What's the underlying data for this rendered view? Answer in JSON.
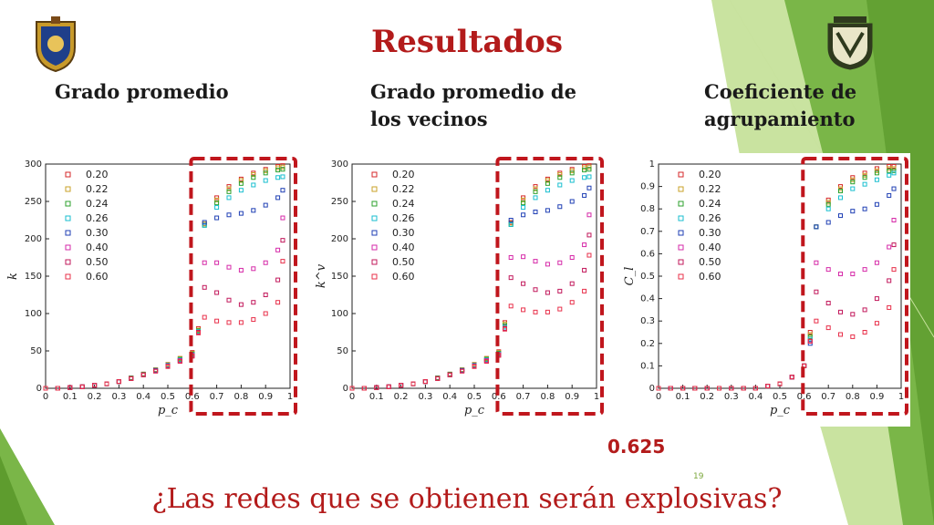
{
  "slide": {
    "title": "Resultados",
    "headings": [
      "Grado promedio",
      "Grado promedio de los vecinos",
      "Coeficiente de agrupamiento"
    ],
    "threshold_label": "0.625",
    "slide_number": "19",
    "question": "¿Las redes que se obtienen serán explosivas?",
    "colors": {
      "title": "#b31b1b",
      "accent_green": "#7ab648",
      "highlight_box": "#c0161d"
    }
  },
  "chart_data": [
    {
      "type": "scatter",
      "title": "",
      "xlabel": "p_c",
      "ylabel": "k̄",
      "xlim": [
        0,
        1
      ],
      "ylim": [
        0,
        300
      ],
      "xticks": [
        "0",
        "0.1",
        "0.2",
        "0.3",
        "0.4",
        "0.5",
        "0.6",
        "0.7",
        "0.8",
        "0.9",
        "1"
      ],
      "yticks": [
        "0",
        "50",
        "100",
        "150",
        "200",
        "250",
        "300"
      ],
      "legend_position": "top-left",
      "x": [
        0,
        0.05,
        0.1,
        0.15,
        0.2,
        0.25,
        0.3,
        0.35,
        0.4,
        0.45,
        0.5,
        0.55,
        0.6,
        0.625,
        0.65,
        0.7,
        0.75,
        0.8,
        0.85,
        0.9,
        0.95,
        0.97
      ],
      "series": [
        {
          "name": "0.20",
          "color": "#d62728",
          "values": [
            0,
            0,
            1,
            2,
            4,
            6,
            9,
            14,
            19,
            25,
            32,
            40,
            48,
            80,
            220,
            255,
            270,
            280,
            288,
            293,
            297,
            298
          ]
        },
        {
          "name": "0.22",
          "color": "#c9a227",
          "values": [
            0,
            0,
            1,
            2,
            4,
            6,
            9,
            14,
            19,
            25,
            32,
            40,
            47,
            78,
            220,
            252,
            267,
            278,
            286,
            291,
            295,
            296
          ]
        },
        {
          "name": "0.24",
          "color": "#2ca02c",
          "values": [
            0,
            0,
            1,
            2,
            4,
            6,
            9,
            14,
            19,
            24,
            31,
            39,
            46,
            77,
            218,
            248,
            263,
            274,
            282,
            288,
            292,
            293
          ]
        },
        {
          "name": "0.26",
          "color": "#17becf",
          "values": [
            0,
            0,
            1,
            2,
            4,
            6,
            9,
            13,
            18,
            24,
            31,
            38,
            45,
            76,
            218,
            242,
            255,
            265,
            272,
            278,
            282,
            283
          ]
        },
        {
          "name": "0.30",
          "color": "#1f3fb4",
          "values": [
            0,
            0,
            1,
            2,
            4,
            6,
            9,
            13,
            18,
            24,
            30,
            37,
            44,
            75,
            222,
            228,
            232,
            234,
            238,
            245,
            255,
            265
          ]
        },
        {
          "name": "0.40",
          "color": "#d62aa8",
          "values": [
            0,
            0,
            1,
            2,
            4,
            6,
            9,
            13,
            18,
            23,
            30,
            37,
            44,
            75,
            168,
            168,
            162,
            158,
            160,
            168,
            185,
            228
          ]
        },
        {
          "name": "0.50",
          "color": "#c2185b",
          "values": [
            0,
            0,
            1,
            2,
            4,
            6,
            9,
            13,
            18,
            23,
            30,
            36,
            43,
            75,
            135,
            128,
            118,
            112,
            115,
            125,
            145,
            198
          ]
        },
        {
          "name": "0.60",
          "color": "#e8304a",
          "values": [
            0,
            0,
            1,
            2,
            4,
            6,
            9,
            13,
            18,
            23,
            29,
            36,
            43,
            74,
            95,
            90,
            88,
            88,
            92,
            100,
            115,
            170
          ]
        }
      ]
    },
    {
      "type": "scatter",
      "title": "",
      "xlabel": "p_c",
      "ylabel": "k̄^v",
      "xlim": [
        0,
        1
      ],
      "ylim": [
        0,
        300
      ],
      "xticks": [
        "0",
        "0.1",
        "0.2",
        "0.3",
        "0.4",
        "0.5",
        "0.6",
        "0.7",
        "0.8",
        "0.9",
        "1"
      ],
      "yticks": [
        "0",
        "50",
        "100",
        "150",
        "200",
        "250",
        "300"
      ],
      "legend_position": "top-left",
      "x": [
        0,
        0.05,
        0.1,
        0.15,
        0.2,
        0.25,
        0.3,
        0.35,
        0.4,
        0.45,
        0.5,
        0.55,
        0.6,
        0.625,
        0.65,
        0.7,
        0.75,
        0.8,
        0.85,
        0.9,
        0.95,
        0.97
      ],
      "series": [
        {
          "name": "0.20",
          "color": "#d62728",
          "values": [
            0,
            0,
            1,
            2,
            4,
            6,
            9,
            14,
            19,
            25,
            32,
            40,
            49,
            88,
            222,
            255,
            270,
            280,
            288,
            293,
            297,
            298
          ]
        },
        {
          "name": "0.22",
          "color": "#c9a227",
          "values": [
            0,
            0,
            1,
            2,
            4,
            6,
            9,
            14,
            19,
            25,
            32,
            40,
            48,
            86,
            221,
            252,
            267,
            278,
            286,
            291,
            295,
            296
          ]
        },
        {
          "name": "0.24",
          "color": "#2ca02c",
          "values": [
            0,
            0,
            1,
            2,
            4,
            6,
            9,
            14,
            19,
            24,
            31,
            39,
            47,
            84,
            219,
            248,
            263,
            274,
            282,
            288,
            292,
            293
          ]
        },
        {
          "name": "0.26",
          "color": "#17becf",
          "values": [
            0,
            0,
            1,
            2,
            4,
            6,
            9,
            13,
            18,
            24,
            31,
            38,
            46,
            82,
            219,
            242,
            255,
            265,
            272,
            278,
            282,
            283
          ]
        },
        {
          "name": "0.30",
          "color": "#1f3fb4",
          "values": [
            0,
            0,
            1,
            2,
            4,
            6,
            9,
            13,
            18,
            24,
            30,
            37,
            45,
            80,
            225,
            232,
            236,
            238,
            243,
            250,
            258,
            268
          ]
        },
        {
          "name": "0.40",
          "color": "#d62aa8",
          "values": [
            0,
            0,
            1,
            2,
            4,
            6,
            9,
            13,
            18,
            23,
            30,
            37,
            45,
            80,
            175,
            176,
            170,
            166,
            168,
            175,
            192,
            232
          ]
        },
        {
          "name": "0.50",
          "color": "#c2185b",
          "values": [
            0,
            0,
            1,
            2,
            4,
            6,
            9,
            13,
            18,
            23,
            30,
            36,
            44,
            80,
            148,
            140,
            132,
            128,
            130,
            140,
            158,
            205
          ]
        },
        {
          "name": "0.60",
          "color": "#e8304a",
          "values": [
            0,
            0,
            1,
            2,
            4,
            6,
            9,
            13,
            18,
            23,
            29,
            36,
            44,
            79,
            110,
            105,
            102,
            102,
            106,
            115,
            130,
            178
          ]
        }
      ]
    },
    {
      "type": "scatter",
      "title": "",
      "xlabel": "p_c",
      "ylabel": "C_l",
      "xlim": [
        0,
        1
      ],
      "ylim": [
        0,
        1
      ],
      "xticks": [
        "0",
        "0.1",
        "0.2",
        "0.3",
        "0.4",
        "0.5",
        "0.6",
        "0.7",
        "0.8",
        "0.9",
        "1"
      ],
      "yticks": [
        "0",
        "0.1",
        "0.2",
        "0.3",
        "0.4",
        "0.5",
        "0.6",
        "0.7",
        "0.8",
        "0.9",
        "1"
      ],
      "legend_position": "top-left",
      "x": [
        0,
        0.05,
        0.1,
        0.15,
        0.2,
        0.25,
        0.3,
        0.35,
        0.4,
        0.45,
        0.5,
        0.55,
        0.6,
        0.625,
        0.65,
        0.7,
        0.75,
        0.8,
        0.85,
        0.9,
        0.95,
        0.97
      ],
      "series": [
        {
          "name": "0.20",
          "color": "#d62728",
          "values": [
            0,
            0,
            0,
            0,
            0,
            0,
            0,
            0,
            0,
            0.01,
            0.02,
            0.05,
            0.1,
            0.25,
            0.72,
            0.84,
            0.9,
            0.94,
            0.96,
            0.98,
            0.99,
            0.99
          ]
        },
        {
          "name": "0.22",
          "color": "#c9a227",
          "values": [
            0,
            0,
            0,
            0,
            0,
            0,
            0,
            0,
            0,
            0.01,
            0.02,
            0.05,
            0.1,
            0.24,
            0.72,
            0.83,
            0.89,
            0.93,
            0.95,
            0.97,
            0.98,
            0.98
          ]
        },
        {
          "name": "0.24",
          "color": "#2ca02c",
          "values": [
            0,
            0,
            0,
            0,
            0,
            0,
            0,
            0,
            0,
            0.01,
            0.02,
            0.05,
            0.1,
            0.23,
            0.72,
            0.82,
            0.88,
            0.92,
            0.94,
            0.96,
            0.97,
            0.97
          ]
        },
        {
          "name": "0.26",
          "color": "#17becf",
          "values": [
            0,
            0,
            0,
            0,
            0,
            0,
            0,
            0,
            0,
            0.01,
            0.02,
            0.05,
            0.1,
            0.22,
            0.72,
            0.8,
            0.85,
            0.89,
            0.91,
            0.93,
            0.95,
            0.96
          ]
        },
        {
          "name": "0.30",
          "color": "#1f3fb4",
          "values": [
            0,
            0,
            0,
            0,
            0,
            0,
            0,
            0,
            0,
            0.01,
            0.02,
            0.05,
            0.1,
            0.2,
            0.72,
            0.74,
            0.77,
            0.79,
            0.8,
            0.82,
            0.86,
            0.89
          ]
        },
        {
          "name": "0.40",
          "color": "#d62aa8",
          "values": [
            0,
            0,
            0,
            0,
            0,
            0,
            0,
            0,
            0,
            0.01,
            0.02,
            0.05,
            0.1,
            0.21,
            0.56,
            0.53,
            0.51,
            0.51,
            0.53,
            0.56,
            0.63,
            0.75
          ]
        },
        {
          "name": "0.50",
          "color": "#c2185b",
          "values": [
            0,
            0,
            0,
            0,
            0,
            0,
            0,
            0,
            0,
            0.01,
            0.02,
            0.05,
            0.1,
            0.21,
            0.43,
            0.38,
            0.34,
            0.33,
            0.35,
            0.4,
            0.48,
            0.64
          ]
        },
        {
          "name": "0.60",
          "color": "#e8304a",
          "values": [
            0,
            0,
            0,
            0,
            0,
            0,
            0,
            0,
            0,
            0.01,
            0.02,
            0.05,
            0.1,
            0.21,
            0.3,
            0.27,
            0.24,
            0.23,
            0.25,
            0.29,
            0.36,
            0.53
          ]
        }
      ]
    }
  ]
}
